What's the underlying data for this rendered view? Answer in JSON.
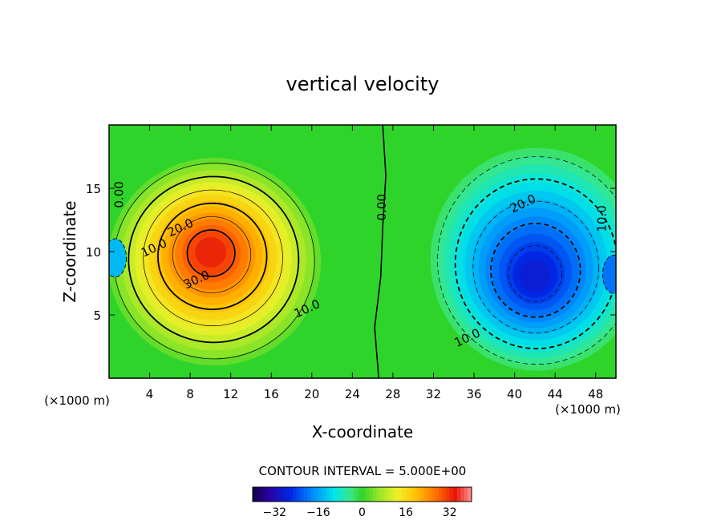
{
  "chart_data": {
    "type": "heatmap",
    "title": "vertical velocity",
    "xlabel": "X-coordinate",
    "ylabel": "Z-coordinate",
    "x_unit": "(×1000 m)",
    "y_unit": "(×1000 m)",
    "xlim": [
      0,
      50
    ],
    "ylim": [
      0,
      20
    ],
    "x_ticks": [
      4,
      8,
      12,
      16,
      20,
      24,
      28,
      32,
      36,
      40,
      44,
      48
    ],
    "y_ticks": [
      5,
      10,
      15
    ],
    "contour_interval_text": "CONTOUR INTERVAL = 5.000E+00",
    "contour_interval": 5,
    "contour_labels": [
      {
        "text": "30.0",
        "x": 8.8,
        "z": 7.5
      },
      {
        "text": "20.0",
        "x": 7.2,
        "z": 11.6
      },
      {
        "text": "10.0",
        "x": 4.6,
        "z": 10.0
      },
      {
        "text": "10.0",
        "x": 19.7,
        "z": 5.2
      },
      {
        "text": "0.00",
        "x": 1.4,
        "z": 14.5
      },
      {
        "text": "0.00",
        "x": 27.3,
        "z": 13.5
      },
      {
        "text": "20.0",
        "x": 41.0,
        "z": 13.5
      },
      {
        "text": "10.0",
        "x": 35.5,
        "z": 2.9
      },
      {
        "text": "10.0",
        "x": 49.0,
        "z": 12.6
      }
    ],
    "extrema": [
      {
        "sign": "max",
        "x": 10,
        "z": 10,
        "value": 35
      },
      {
        "sign": "min",
        "x": 42,
        "z": 8,
        "value": -30
      }
    ],
    "colorbar": {
      "range": [
        -40,
        40
      ],
      "ticks": [
        -32,
        -16,
        0,
        16,
        32
      ]
    }
  }
}
